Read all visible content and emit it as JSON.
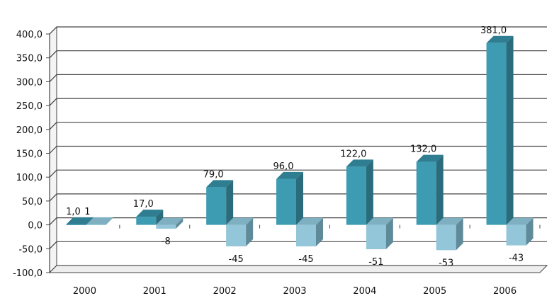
{
  "chart_data": {
    "type": "bar",
    "categories": [
      "2000",
      "2001",
      "2002",
      "2003",
      "2004",
      "2005",
      "2006"
    ],
    "series": [
      {
        "values": [
          1.0,
          17.0,
          79.0,
          96.0,
          122.0,
          132.0,
          381.0
        ],
        "labels": [
          "1,0",
          "17,0",
          "79,0",
          "96,0",
          "122,0",
          "132,0",
          "381,0"
        ]
      },
      {
        "values": [
          1,
          -8,
          -45,
          -45,
          -51,
          -53,
          -43
        ],
        "labels": [
          "1",
          "-8",
          "-45",
          "-45",
          "-51",
          "-53",
          "-43"
        ]
      }
    ],
    "y_ticks": [
      400,
      350,
      300,
      250,
      200,
      150,
      100,
      50,
      0,
      -50,
      -100
    ],
    "y_tick_labels": [
      "400,0",
      "350,0",
      "300,0",
      "250,0",
      "200,0",
      "150,0",
      "100,0",
      "50,0",
      "0,0",
      "-50,0",
      "-100,0"
    ],
    "ylim": [
      -100,
      400
    ],
    "grid": true,
    "title": "",
    "xlabel": "",
    "ylabel": "",
    "colors": {
      "series1_front": "#3d9bb2",
      "series1_side": "#2a6b7c",
      "series1_top": "#2e7d90",
      "series2_front": "#93c6d8",
      "series2_side": "#5f8a99",
      "series2_top": "#7eb0c2",
      "grid": "#444444",
      "wall": "#ffffff"
    }
  }
}
